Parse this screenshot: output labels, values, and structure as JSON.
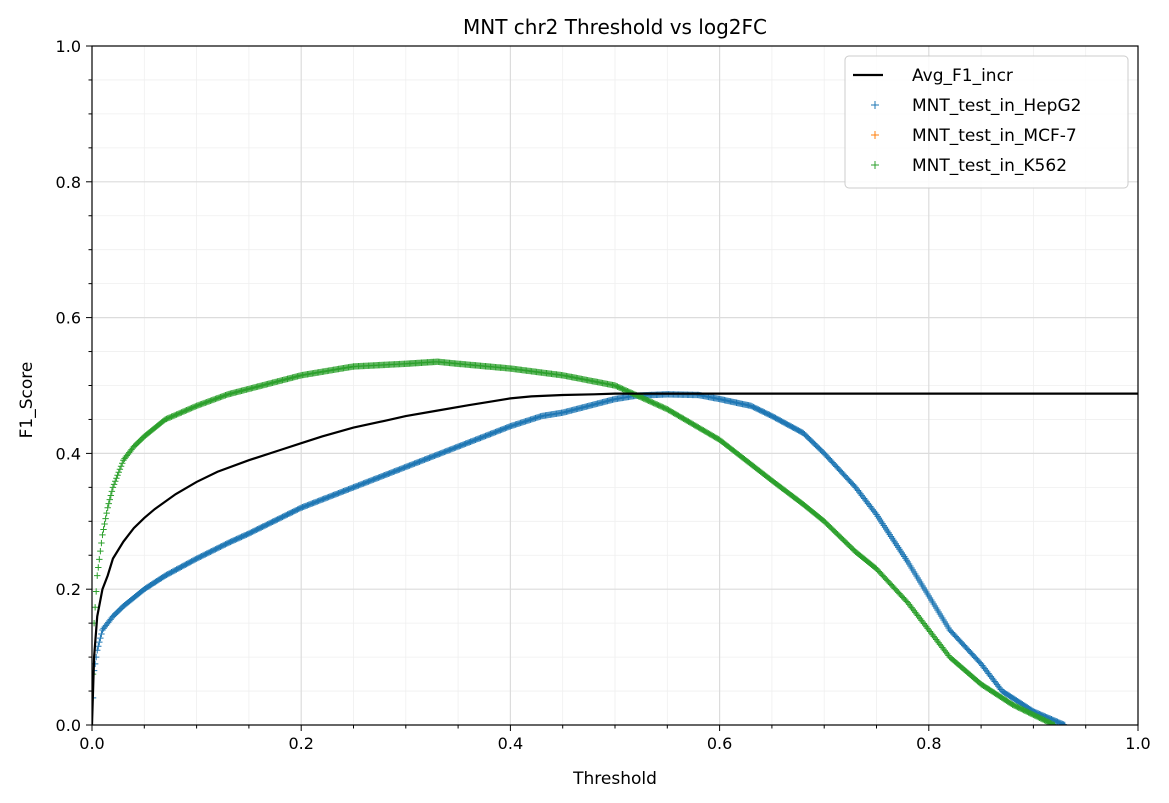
{
  "chart_data": {
    "type": "line",
    "title": "MNT chr2 Threshold vs log2FC",
    "xlabel": "Threshold",
    "ylabel": "F1_Score",
    "xlim": [
      0,
      1
    ],
    "ylim": [
      0,
      1
    ],
    "xticks": [
      "0.0",
      "0.2",
      "0.4",
      "0.6",
      "0.8",
      "1.0"
    ],
    "yticks": [
      "0.0",
      "0.2",
      "0.4",
      "0.6",
      "0.8",
      "1.0"
    ],
    "grid": true,
    "legend_position": "top-right",
    "series": [
      {
        "name": "Avg_F1_incr",
        "kind": "line",
        "color": "#000000",
        "x": [
          0,
          0.002,
          0.005,
          0.01,
          0.015,
          0.02,
          0.03,
          0.04,
          0.05,
          0.06,
          0.08,
          0.1,
          0.12,
          0.15,
          0.18,
          0.2,
          0.22,
          0.25,
          0.28,
          0.3,
          0.33,
          0.36,
          0.38,
          0.4,
          0.42,
          0.45,
          0.48,
          0.5,
          0.52,
          0.55,
          0.6,
          0.7,
          0.8,
          0.9,
          1.0
        ],
        "y": [
          0,
          0.1,
          0.16,
          0.2,
          0.22,
          0.245,
          0.27,
          0.29,
          0.305,
          0.318,
          0.34,
          0.358,
          0.373,
          0.39,
          0.405,
          0.415,
          0.425,
          0.438,
          0.448,
          0.455,
          0.463,
          0.471,
          0.476,
          0.481,
          0.484,
          0.486,
          0.487,
          0.488,
          0.488,
          0.488,
          0.488,
          0.488,
          0.488,
          0.488,
          0.488
        ]
      },
      {
        "name": "MNT_test_in_HepG2",
        "kind": "scatter",
        "marker": "+",
        "color": "#1f77b4",
        "x": [
          0,
          0.002,
          0.005,
          0.01,
          0.02,
          0.03,
          0.05,
          0.07,
          0.1,
          0.13,
          0.15,
          0.2,
          0.25,
          0.3,
          0.35,
          0.4,
          0.43,
          0.45,
          0.5,
          0.52,
          0.55,
          0.58,
          0.6,
          0.63,
          0.65,
          0.68,
          0.7,
          0.73,
          0.75,
          0.78,
          0.8,
          0.82,
          0.85,
          0.87,
          0.9,
          0.93
        ],
        "y": [
          0,
          0.08,
          0.11,
          0.14,
          0.16,
          0.175,
          0.2,
          0.22,
          0.245,
          0.268,
          0.282,
          0.32,
          0.35,
          0.38,
          0.41,
          0.44,
          0.455,
          0.46,
          0.48,
          0.485,
          0.487,
          0.486,
          0.48,
          0.47,
          0.455,
          0.43,
          0.4,
          0.35,
          0.31,
          0.24,
          0.19,
          0.14,
          0.09,
          0.05,
          0.02,
          0.0
        ]
      },
      {
        "name": "MNT_test_in_MCF-7",
        "kind": "scatter",
        "marker": "+",
        "color": "#ff7f0e",
        "x": [],
        "y": []
      },
      {
        "name": "MNT_test_in_K562",
        "kind": "scatter",
        "marker": "+",
        "color": "#2ca02c",
        "x": [
          0,
          0.002,
          0.005,
          0.01,
          0.015,
          0.02,
          0.03,
          0.04,
          0.05,
          0.07,
          0.1,
          0.13,
          0.15,
          0.2,
          0.25,
          0.3,
          0.33,
          0.35,
          0.4,
          0.45,
          0.5,
          0.55,
          0.6,
          0.65,
          0.68,
          0.7,
          0.73,
          0.75,
          0.78,
          0.8,
          0.82,
          0.85,
          0.88,
          0.9,
          0.92
        ],
        "y": [
          0,
          0.15,
          0.22,
          0.28,
          0.32,
          0.35,
          0.39,
          0.41,
          0.425,
          0.45,
          0.47,
          0.487,
          0.495,
          0.515,
          0.528,
          0.532,
          0.535,
          0.532,
          0.525,
          0.515,
          0.5,
          0.465,
          0.42,
          0.36,
          0.325,
          0.3,
          0.255,
          0.23,
          0.18,
          0.14,
          0.1,
          0.06,
          0.03,
          0.015,
          0.0
        ]
      }
    ]
  }
}
